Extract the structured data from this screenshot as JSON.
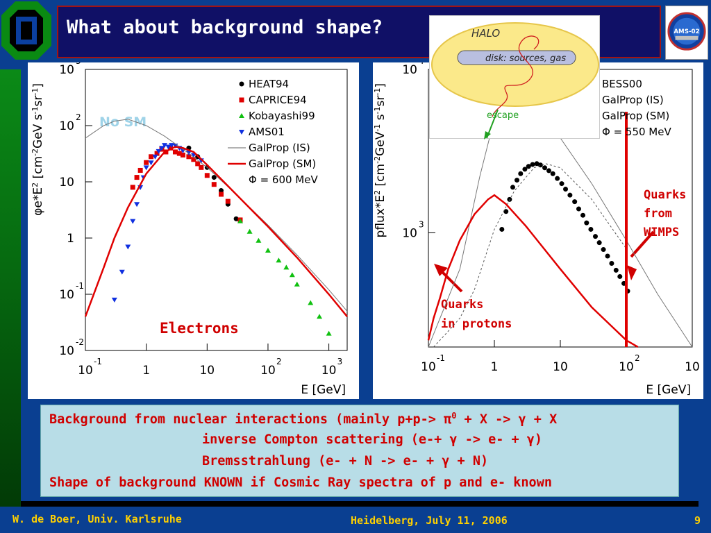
{
  "slide": {
    "title": "What about background shape?",
    "colors": {
      "background": "#0a3f91",
      "title_box": "#101066",
      "accent_red": "#d00000",
      "footer_text": "#ffd000"
    }
  },
  "halo_inset": {
    "halo_label": "HALO",
    "disk_label": "disk: sources, gas",
    "escape_label": "escape"
  },
  "badge": {
    "label": "AMS-02"
  },
  "chart_data": [
    {
      "type": "scatter",
      "panel": "electrons",
      "xlabel": "E [GeV]",
      "ylabel_parts": [
        "φ",
        "e",
        "*E",
        "2",
        " [cm",
        "-2",
        "GeV s",
        "-1",
        "sr",
        "-1",
        "]"
      ],
      "xscale": "log",
      "yscale": "log",
      "xlim": [
        0.1,
        2000
      ],
      "ylim": [
        0.01,
        1000
      ],
      "x_ticks": [
        {
          "base": "10",
          "exp": "-1"
        },
        {
          "base": "1",
          "exp": ""
        },
        {
          "base": "10",
          "exp": ""
        },
        {
          "base": "10",
          "exp": "2"
        },
        {
          "base": "10",
          "exp": "3"
        }
      ],
      "y_ticks": [
        {
          "base": "10",
          "exp": "-2"
        },
        {
          "base": "10",
          "exp": "-1"
        },
        {
          "base": "1",
          "exp": ""
        },
        {
          "base": "10",
          "exp": ""
        },
        {
          "base": "10",
          "exp": "2"
        },
        {
          "base": "10",
          "exp": "3"
        }
      ],
      "annotation_nosm": "No SM",
      "annotation_electrons": "Electrons",
      "legend": [
        {
          "name": "HEAT94",
          "marker": "circle",
          "color": "#000000"
        },
        {
          "name": "CAPRICE94",
          "marker": "square",
          "color": "#e00000"
        },
        {
          "name": "Kobayashi99",
          "marker": "triangle-up",
          "color": "#10c010"
        },
        {
          "name": "AMS01",
          "marker": "triangle-down",
          "color": "#1030e0"
        },
        {
          "name": "GalProp (IS)",
          "marker": "thin-line",
          "color": "#666666"
        },
        {
          "name": "GalProp (SM)",
          "marker": "line",
          "color": "#e00000"
        },
        {
          "name": "Φ = 600 MeV",
          "marker": "none",
          "color": "#000000"
        }
      ],
      "series": [
        {
          "name": "HEAT94",
          "x": [
            5,
            7,
            10,
            13,
            17,
            22,
            30
          ],
          "y": [
            40,
            28,
            18,
            12,
            7,
            4,
            2.2
          ]
        },
        {
          "name": "CAPRICE94",
          "x": [
            0.6,
            0.7,
            0.8,
            1,
            1.2,
            1.5,
            1.8,
            2.1,
            2.5,
            3,
            3.5,
            4,
            5,
            6,
            7,
            8,
            10,
            13,
            17,
            22,
            35
          ],
          "y": [
            8,
            12,
            16,
            22,
            28,
            32,
            38,
            34,
            40,
            34,
            32,
            30,
            28,
            25,
            21,
            18,
            13,
            9,
            6,
            4.5,
            2.1
          ]
        },
        {
          "name": "Kobayashi99",
          "x": [
            35,
            50,
            70,
            100,
            150,
            200,
            250,
            300,
            500,
            700,
            1000
          ],
          "y": [
            2.0,
            1.3,
            0.9,
            0.6,
            0.4,
            0.3,
            0.22,
            0.15,
            0.07,
            0.04,
            0.02
          ]
        },
        {
          "name": "AMS01",
          "x": [
            0.3,
            0.4,
            0.5,
            0.6,
            0.7,
            0.8,
            0.9,
            1,
            1.2,
            1.4,
            1.6,
            1.8,
            2,
            2.3,
            2.6,
            3,
            3.5,
            4,
            5,
            6,
            8
          ],
          "y": [
            0.08,
            0.25,
            0.7,
            2,
            4,
            8,
            12,
            18,
            22,
            28,
            35,
            40,
            45,
            42,
            45,
            44,
            40,
            36,
            33,
            30,
            24
          ]
        },
        {
          "name": "GalProp (IS)",
          "x": [
            0.1,
            0.2,
            0.3,
            0.5,
            1,
            2,
            5,
            10,
            30,
            100,
            300,
            1000,
            2000
          ],
          "y": [
            60,
            100,
            120,
            130,
            100,
            65,
            32,
            18,
            6,
            1.7,
            0.5,
            0.12,
            0.05
          ]
        },
        {
          "name": "GalProp (SM)",
          "x": [
            0.1,
            0.2,
            0.3,
            0.5,
            1,
            2,
            3,
            4,
            6,
            10,
            30,
            100,
            300,
            1000,
            2000
          ],
          "y": [
            0.04,
            0.3,
            1.0,
            3.5,
            14,
            34,
            42,
            40,
            34,
            20,
            6,
            1.6,
            0.45,
            0.1,
            0.04
          ]
        }
      ]
    },
    {
      "type": "scatter",
      "panel": "protons",
      "xlabel": "E [GeV]",
      "ylabel_parts": [
        "pflux*E",
        "2",
        " [cm",
        "-2",
        "GeV",
        "-1",
        " s",
        "-1",
        "sr",
        "-1",
        "]"
      ],
      "xscale": "log",
      "yscale": "log",
      "xlim": [
        0.1,
        1000
      ],
      "ylim": [
        200,
        10000
      ],
      "x_ticks": [
        {
          "base": "10",
          "exp": "-1"
        },
        {
          "base": "1",
          "exp": ""
        },
        {
          "base": "10",
          "exp": ""
        },
        {
          "base": "10",
          "exp": "2"
        },
        {
          "base": "10",
          "exp": ""
        }
      ],
      "y_ticks": [
        {
          "base": "10",
          "exp": "3"
        },
        {
          "base": "10",
          "exp": "4"
        }
      ],
      "annotation_wimps": [
        "Quarks",
        "from",
        "WIMPS"
      ],
      "annotation_protons": [
        "Quarks",
        "in protons"
      ],
      "legend": [
        {
          "name": "BESS00"
        },
        {
          "name": "GalProp (IS)"
        },
        {
          "name": "GalProp (SM)"
        },
        {
          "name": "Φ = 550 MeV"
        }
      ],
      "series": [
        {
          "name": "BESS00",
          "x": [
            1.3,
            1.5,
            1.7,
            1.9,
            2.2,
            2.5,
            2.9,
            3.3,
            3.8,
            4.4,
            5,
            5.8,
            6.7,
            7.7,
            9,
            10.5,
            12,
            14,
            16.5,
            19,
            22,
            25,
            29,
            34,
            39,
            45,
            52,
            60,
            70,
            80,
            92,
            105
          ],
          "y": [
            1050,
            1350,
            1600,
            1900,
            2100,
            2300,
            2450,
            2550,
            2620,
            2650,
            2600,
            2500,
            2400,
            2300,
            2150,
            2000,
            1850,
            1700,
            1550,
            1400,
            1280,
            1150,
            1050,
            950,
            870,
            790,
            720,
            650,
            590,
            540,
            490,
            440
          ]
        },
        {
          "name": "GalProp (IS)",
          "x": [
            0.1,
            0.3,
            0.6,
            1,
            2,
            4,
            10,
            30,
            100,
            300,
            1000
          ],
          "y": [
            200,
            600,
            2200,
            5000,
            6000,
            5200,
            3800,
            2000,
            900,
            420,
            200
          ]
        },
        {
          "name": "GalProp (SM)",
          "x": [
            0.12,
            0.2,
            0.3,
            0.5,
            1,
            2,
            4,
            6,
            10,
            30,
            100
          ],
          "y": [
            200,
            250,
            300,
            450,
            1050,
            1800,
            2500,
            2650,
            2500,
            1600,
            800
          ]
        },
        {
          "name": "Quarks in protons",
          "x": [
            0.1,
            0.12,
            0.15,
            0.2,
            0.3,
            0.5,
            0.8,
            1,
            1.5,
            3,
            10,
            30,
            100,
            150
          ],
          "y": [
            220,
            300,
            400,
            600,
            900,
            1300,
            1600,
            1700,
            1500,
            1100,
            600,
            350,
            220,
            200
          ]
        },
        {
          "name": "Quarks from WIMPS",
          "x": [
            100,
            100
          ],
          "y": [
            200,
            5500
          ]
        }
      ]
    }
  ],
  "bottom_text": {
    "line1_a": "Background from nuclear interactions (mainly p+p-> π",
    "line1_sup": "0",
    "line1_b": " + X -> γ + X",
    "line2": "inverse Compton scattering (e-+ γ -> e- + γ)",
    "line3": "Bremsstrahlung (e- + N -> e- + γ + N)",
    "line4": "Shape of background KNOWN if Cosmic Ray spectra of p and e- known"
  },
  "footer": {
    "left": "W. de Boer, Univ. Karlsruhe",
    "center": "Heidelberg, July 11, 2006",
    "page": "9"
  }
}
